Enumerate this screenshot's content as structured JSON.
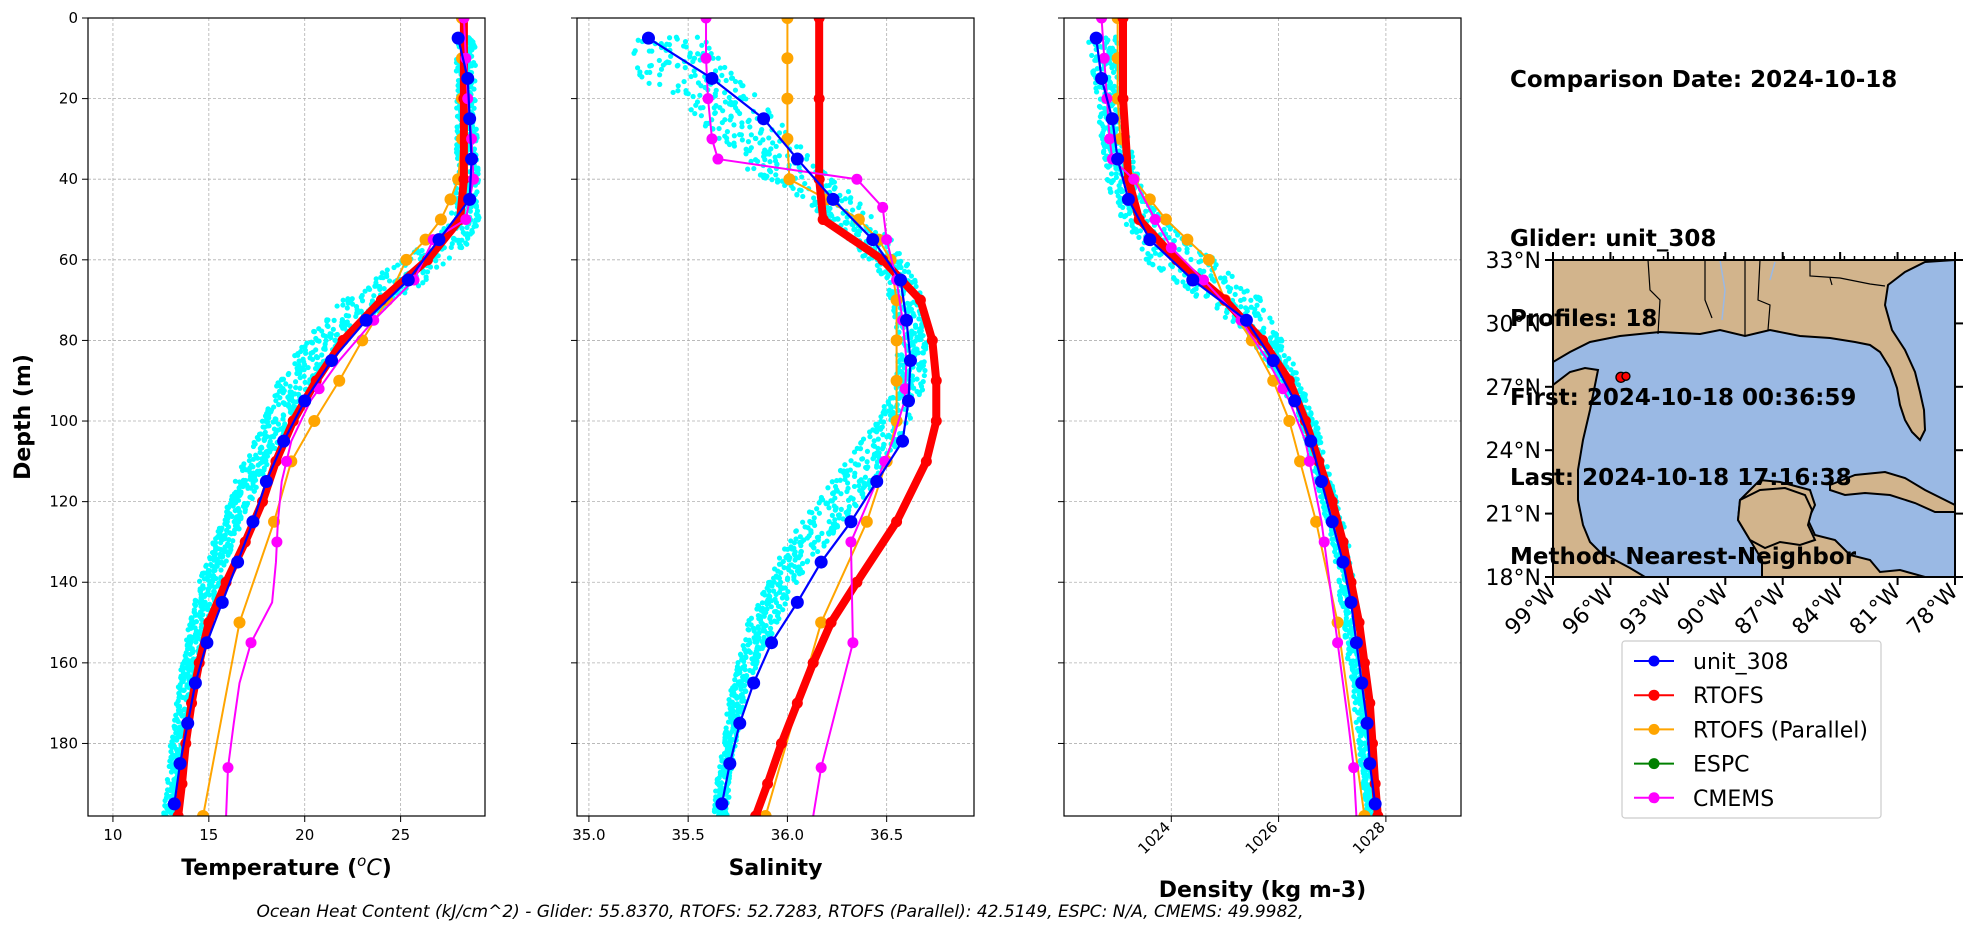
{
  "info": {
    "comparison_date": "Comparison Date: 2024-10-18",
    "glider": "Glider: unit_308",
    "profiles": "Profiles: 18",
    "first": "First: 2024-10-18 00:36:59",
    "last": "Last: 2024-10-18 17:16:38",
    "method": "Method: Nearest-Neighbor"
  },
  "footer": "Ocean Heat Content (kJ/cm^2) - Glider: 55.8370,  RTOFS: 52.7283,  RTOFS (Parallel): 42.5149,  ESPC: N/A,  CMEMS: 49.9982,",
  "colors": {
    "raw": "#00ffff",
    "glider": "#0000ff",
    "rtofs": "#ff0000",
    "rtofs_parallel": "#ffa500",
    "espc": "#008000",
    "cmems": "#ff00ff",
    "land": "#d2b48c",
    "ocean": "#9ab9e4"
  },
  "chart_data": [
    {
      "type": "line",
      "xlabel": "Temperature ($^oC$)",
      "ylabel": "Depth (m)",
      "xlim": [
        8.7,
        29.4
      ],
      "ylim": [
        198,
        0
      ],
      "xticks": [
        10,
        15,
        20,
        25
      ],
      "yticks": [
        0,
        20,
        40,
        60,
        80,
        100,
        120,
        140,
        160,
        180
      ],
      "grid": true,
      "raw_glider_band": {
        "depth": [
          5,
          10,
          20,
          30,
          40,
          50,
          55,
          60,
          65,
          70,
          80,
          90,
          100,
          110,
          120,
          130,
          140,
          150,
          160,
          170,
          180,
          190,
          198
        ],
        "min": [
          27.9,
          27.9,
          27.9,
          27.9,
          27.9,
          27.6,
          26.5,
          25.2,
          23.5,
          22.0,
          20.0,
          18.6,
          17.8,
          16.8,
          16.0,
          15.2,
          14.5,
          14.0,
          13.6,
          13.3,
          13.0,
          12.8,
          12.6
        ],
        "max": [
          28.9,
          28.9,
          28.9,
          29.0,
          29.1,
          29.1,
          28.7,
          27.8,
          26.6,
          24.6,
          22.0,
          20.4,
          19.3,
          18.1,
          17.2,
          16.3,
          15.6,
          15.0,
          14.6,
          14.2,
          13.8,
          13.5,
          13.3
        ]
      },
      "series": [
        {
          "name": "unit_308",
          "depth": [
            5,
            15,
            25,
            35,
            45,
            55,
            65,
            75,
            85,
            95,
            105,
            115,
            125,
            135,
            145,
            155,
            165,
            175,
            185,
            195
          ],
          "values": [
            28.0,
            28.5,
            28.6,
            28.7,
            28.6,
            27.0,
            25.4,
            23.2,
            21.4,
            20.0,
            18.9,
            18.0,
            17.3,
            16.5,
            15.7,
            14.9,
            14.3,
            13.9,
            13.5,
            13.2
          ]
        },
        {
          "name": "RTOFS",
          "depth": [
            0,
            20,
            40,
            50,
            60,
            70,
            80,
            90,
            100,
            110,
            120,
            130,
            140,
            150,
            160,
            170,
            180,
            190,
            198
          ],
          "values": [
            28.3,
            28.3,
            28.3,
            28.1,
            26.4,
            24.0,
            22.0,
            20.6,
            19.4,
            18.5,
            17.8,
            16.9,
            15.9,
            15.0,
            14.5,
            14.1,
            13.8,
            13.6,
            13.4
          ]
        },
        {
          "name": "RTOFS (Parallel)",
          "depth": [
            0,
            10,
            20,
            30,
            40,
            45,
            50,
            55,
            60,
            70,
            80,
            90,
            100,
            110,
            125,
            150,
            198
          ],
          "values": [
            28.2,
            28.2,
            28.2,
            28.2,
            28.0,
            27.6,
            27.1,
            26.3,
            25.3,
            24.3,
            23.0,
            21.8,
            20.5,
            19.3,
            18.4,
            16.6,
            14.7
          ]
        },
        {
          "name": "ESPC",
          "depth": [],
          "values": []
        },
        {
          "name": "CMEMS",
          "depth": [
            0,
            10,
            20,
            30,
            40,
            50,
            55,
            65,
            75,
            85,
            95,
            105,
            115,
            125,
            135,
            145,
            155,
            165,
            175,
            186,
            198
          ],
          "values": [
            28.3,
            28.4,
            28.5,
            28.7,
            28.8,
            28.4,
            26.7,
            25.7,
            23.6,
            21.8,
            20.3,
            19.3,
            18.8,
            18.6,
            18.5,
            18.3,
            17.2,
            16.6,
            16.3,
            16.0,
            15.9
          ],
          "markers_at": [
            0,
            10,
            20,
            30,
            40,
            50,
            55,
            65,
            75,
            92,
            110,
            130,
            155,
            186
          ]
        }
      ]
    },
    {
      "type": "line",
      "xlabel": "Salinity",
      "ylabel": "",
      "xlim": [
        34.94,
        36.94
      ],
      "ylim": [
        198,
        0
      ],
      "xticks": [
        35.0,
        35.5,
        36.0,
        36.5
      ],
      "grid": true,
      "raw_glider_band": {
        "depth": [
          5,
          10,
          15,
          20,
          25,
          30,
          35,
          40,
          45,
          50,
          55,
          60,
          65,
          70,
          80,
          90,
          100,
          110,
          120,
          130,
          140,
          150,
          160,
          170,
          180,
          190,
          198
        ],
        "min": [
          35.22,
          35.22,
          35.25,
          35.45,
          35.55,
          35.62,
          35.7,
          35.9,
          36.05,
          36.2,
          36.3,
          36.4,
          36.48,
          36.52,
          36.55,
          36.55,
          36.45,
          36.3,
          36.15,
          36.0,
          35.9,
          35.8,
          35.75,
          35.7,
          35.68,
          35.64,
          35.63
        ],
        "max": [
          35.6,
          35.65,
          35.75,
          35.85,
          35.95,
          36.05,
          36.12,
          36.25,
          36.35,
          36.45,
          36.52,
          36.6,
          36.65,
          36.68,
          36.7,
          36.7,
          36.62,
          36.5,
          36.38,
          36.2,
          36.05,
          35.95,
          35.85,
          35.78,
          35.74,
          35.71,
          35.7
        ]
      },
      "series": [
        {
          "name": "unit_308",
          "depth": [
            5,
            15,
            25,
            35,
            45,
            55,
            65,
            75,
            85,
            95,
            105,
            115,
            125,
            135,
            145,
            155,
            165,
            175,
            185,
            195
          ],
          "values": [
            35.3,
            35.62,
            35.88,
            36.05,
            36.23,
            36.43,
            36.57,
            36.6,
            36.62,
            36.61,
            36.58,
            36.45,
            36.32,
            36.17,
            36.05,
            35.92,
            35.83,
            35.76,
            35.71,
            35.67
          ]
        },
        {
          "name": "RTOFS",
          "depth": [
            0,
            20,
            40,
            50,
            60,
            70,
            80,
            90,
            100,
            110,
            125,
            140,
            150,
            160,
            170,
            180,
            190,
            198
          ],
          "values": [
            36.16,
            36.16,
            36.16,
            36.18,
            36.48,
            36.67,
            36.73,
            36.75,
            36.75,
            36.7,
            36.55,
            36.35,
            36.22,
            36.13,
            36.05,
            35.97,
            35.9,
            35.84
          ]
        },
        {
          "name": "RTOFS (Parallel)",
          "depth": [
            0,
            10,
            20,
            30,
            40,
            45,
            50,
            55,
            60,
            70,
            80,
            90,
            100,
            110,
            125,
            150,
            198
          ],
          "values": [
            36.0,
            36.0,
            36.0,
            36.0,
            36.01,
            36.2,
            36.36,
            36.46,
            36.52,
            36.55,
            36.55,
            36.55,
            36.55,
            36.5,
            36.4,
            36.17,
            35.89
          ]
        },
        {
          "name": "ESPC",
          "depth": [],
          "values": []
        },
        {
          "name": "CMEMS",
          "depth": [
            0,
            10,
            20,
            30,
            35,
            40,
            47,
            55,
            65,
            75,
            85,
            95,
            105,
            115,
            130,
            155,
            186,
            198
          ],
          "values": [
            35.59,
            35.59,
            35.6,
            35.62,
            35.65,
            36.35,
            36.48,
            36.5,
            36.55,
            36.58,
            36.6,
            36.59,
            36.53,
            36.45,
            36.32,
            36.33,
            36.17,
            36.13
          ],
          "markers_at": [
            0,
            10,
            20,
            30,
            35,
            40,
            47,
            55,
            65,
            75,
            92,
            110,
            130,
            155,
            186
          ]
        }
      ]
    },
    {
      "type": "line",
      "xlabel": "Density (kg m-3)",
      "ylabel": "",
      "xlim": [
        1022.0,
        1029.4
      ],
      "ylim": [
        198,
        0
      ],
      "xticks": [
        1024,
        1026,
        1028
      ],
      "grid": true,
      "raw_glider_band": {
        "depth": [
          5,
          10,
          20,
          30,
          40,
          45,
          50,
          55,
          60,
          65,
          70,
          75,
          80,
          90,
          100,
          110,
          120,
          130,
          140,
          150,
          160,
          170,
          180,
          190,
          198
        ],
        "min": [
          1022.45,
          1022.5,
          1022.6,
          1022.7,
          1022.8,
          1022.9,
          1023.0,
          1023.2,
          1023.5,
          1024.0,
          1024.6,
          1025.1,
          1025.5,
          1026.0,
          1026.4,
          1026.6,
          1026.8,
          1027.0,
          1027.1,
          1027.2,
          1027.3,
          1027.4,
          1027.5,
          1027.55,
          1027.6
        ],
        "max": [
          1023.1,
          1023.1,
          1023.1,
          1023.2,
          1023.4,
          1023.6,
          1023.9,
          1024.3,
          1024.8,
          1025.3,
          1025.7,
          1025.9,
          1026.1,
          1026.4,
          1026.7,
          1026.9,
          1027.1,
          1027.3,
          1027.4,
          1027.5,
          1027.6,
          1027.7,
          1027.75,
          1027.8,
          1027.8
        ]
      },
      "series": [
        {
          "name": "unit_308",
          "depth": [
            5,
            15,
            25,
            35,
            45,
            55,
            65,
            75,
            85,
            95,
            105,
            115,
            125,
            135,
            145,
            155,
            165,
            175,
            185,
            195
          ],
          "values": [
            1022.6,
            1022.7,
            1022.9,
            1023.0,
            1023.2,
            1023.6,
            1024.4,
            1025.4,
            1025.9,
            1026.3,
            1026.6,
            1026.8,
            1027.0,
            1027.2,
            1027.35,
            1027.45,
            1027.55,
            1027.65,
            1027.7,
            1027.8
          ]
        },
        {
          "name": "RTOFS",
          "depth": [
            0,
            20,
            40,
            50,
            60,
            70,
            80,
            90,
            100,
            110,
            120,
            130,
            140,
            150,
            160,
            170,
            180,
            190,
            198
          ],
          "values": [
            1023.1,
            1023.1,
            1023.2,
            1023.4,
            1024.1,
            1025.0,
            1025.7,
            1026.2,
            1026.5,
            1026.75,
            1027.0,
            1027.2,
            1027.35,
            1027.5,
            1027.6,
            1027.7,
            1027.75,
            1027.8,
            1027.85
          ]
        },
        {
          "name": "RTOFS (Parallel)",
          "depth": [
            0,
            10,
            20,
            30,
            40,
            45,
            50,
            55,
            60,
            70,
            80,
            90,
            100,
            110,
            125,
            150,
            198
          ],
          "values": [
            1023.0,
            1023.0,
            1023.0,
            1023.05,
            1023.3,
            1023.6,
            1023.9,
            1024.3,
            1024.7,
            1025.0,
            1025.5,
            1025.9,
            1026.2,
            1026.4,
            1026.7,
            1027.1,
            1027.6
          ]
        },
        {
          "name": "ESPC",
          "depth": [],
          "values": []
        },
        {
          "name": "CMEMS",
          "depth": [
            0,
            10,
            20,
            30,
            35,
            40,
            50,
            57,
            65,
            75,
            85,
            95,
            105,
            115,
            125,
            135,
            145,
            155,
            165,
            175,
            186,
            198
          ],
          "values": [
            1022.7,
            1022.75,
            1022.8,
            1022.85,
            1022.9,
            1023.3,
            1023.7,
            1024.0,
            1024.6,
            1025.3,
            1025.8,
            1026.2,
            1026.5,
            1026.65,
            1026.8,
            1026.9,
            1027.0,
            1027.1,
            1027.2,
            1027.3,
            1027.4,
            1027.45
          ],
          "markers_at": [
            0,
            10,
            20,
            30,
            35,
            40,
            50,
            57,
            65,
            75,
            92,
            110,
            130,
            155,
            186
          ]
        }
      ]
    }
  ],
  "legend": {
    "placement": "below-map",
    "items": [
      {
        "name": "unit_308",
        "color": "#0000ff"
      },
      {
        "name": "RTOFS",
        "color": "#ff0000"
      },
      {
        "name": "RTOFS (Parallel)",
        "color": "#ffa500"
      },
      {
        "name": "ESPC",
        "color": "#008000"
      },
      {
        "name": "CMEMS",
        "color": "#ff00ff"
      }
    ]
  },
  "map": {
    "lon_range": [
      -99,
      -78
    ],
    "lat_range": [
      18,
      33
    ],
    "lon_ticks": [
      "99°W",
      "96°W",
      "93°W",
      "90°W",
      "87°W",
      "84°W",
      "81°W",
      "78°W"
    ],
    "lat_ticks": [
      "33°N",
      "30°N",
      "27°N",
      "24°N",
      "21°N",
      "18°N"
    ],
    "glider_position": {
      "lon": -95.45,
      "lat": 27.45
    }
  }
}
